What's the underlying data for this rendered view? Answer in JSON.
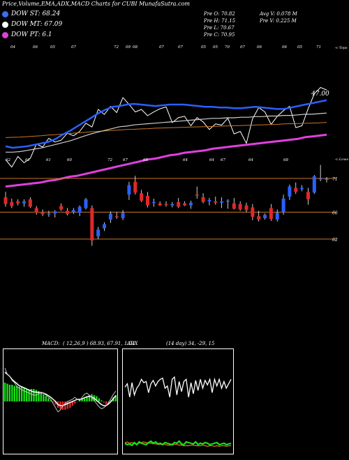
{
  "title": "Price,Volume,EMA,ADX,MACD Charts for CUBI MunafaSutra.com",
  "legend": [
    {
      "label": "DOW ST: 68.24",
      "color": "#3a6ff0"
    },
    {
      "label": "DOW MT: 67.09",
      "color": "#ffffff"
    },
    {
      "label": "DOW PT: 6.1",
      "color": "#e040e0"
    }
  ],
  "ohlc_col1": [
    "Pre  O: 70.82",
    "Pre  H: 71.15",
    "Pre  L: 70.67",
    "Pre  C: 70.95"
  ],
  "ohlc_col2": [
    "Avg V: 0.078  M",
    "Pre  V: 0.225  M"
  ],
  "upper_tag": "<-Tops",
  "lower_tag": "<-Lows",
  "value_label": "47.00",
  "top_tags": [
    "04",
    "06",
    "05",
    "07",
    "72",
    "09",
    "08",
    "07",
    "07",
    "05",
    "05",
    "70",
    "07",
    "06",
    "06",
    "05",
    "71"
  ],
  "bottom_tags": [
    "62",
    "61",
    "61",
    "60",
    "72",
    "67",
    "68",
    "64",
    "64",
    "67",
    "64",
    "68"
  ],
  "price_labels": [
    "71",
    "66",
    "62"
  ],
  "macd_label": "MACD:",
  "macd_params": "( 12,26,9 ) 68.93, 67.91, 1.04",
  "adx_label": "ADX",
  "adx_params": "(14 day) 34, -29, 15",
  "chart_data": {
    "type": "candlestick",
    "levels": [
      71,
      66,
      62
    ],
    "candles": [
      {
        "o": 68.2,
        "h": 69.0,
        "l": 66.8,
        "c": 67.2,
        "up": false
      },
      {
        "o": 67.5,
        "h": 68.0,
        "l": 66.6,
        "c": 66.9,
        "up": false
      },
      {
        "o": 67.6,
        "h": 67.9,
        "l": 67.0,
        "c": 67.3,
        "up": false
      },
      {
        "o": 67.3,
        "h": 67.9,
        "l": 66.8,
        "c": 67.6,
        "up": true
      },
      {
        "o": 67.9,
        "h": 68.2,
        "l": 66.6,
        "c": 66.8,
        "up": false
      },
      {
        "o": 66.6,
        "h": 66.9,
        "l": 65.6,
        "c": 65.9,
        "up": false
      },
      {
        "o": 66.0,
        "h": 66.4,
        "l": 65.4,
        "c": 65.7,
        "up": false
      },
      {
        "o": 65.8,
        "h": 66.2,
        "l": 65.3,
        "c": 65.8,
        "up": true
      },
      {
        "o": 65.8,
        "h": 66.3,
        "l": 65.2,
        "c": 66.1,
        "up": true
      },
      {
        "o": 66.9,
        "h": 67.3,
        "l": 66.2,
        "c": 66.4,
        "up": false
      },
      {
        "o": 66.2,
        "h": 66.6,
        "l": 65.5,
        "c": 65.7,
        "up": false
      },
      {
        "o": 66.0,
        "h": 66.6,
        "l": 65.7,
        "c": 66.3,
        "up": true
      },
      {
        "o": 65.9,
        "h": 67.0,
        "l": 65.4,
        "c": 66.8,
        "up": true
      },
      {
        "o": 66.6,
        "h": 68.1,
        "l": 66.4,
        "c": 67.9,
        "up": true
      },
      {
        "o": 66.6,
        "h": 67.0,
        "l": 61.0,
        "c": 61.8,
        "up": false
      },
      {
        "o": 62.4,
        "h": 63.8,
        "l": 62.0,
        "c": 63.4,
        "up": true
      },
      {
        "o": 63.6,
        "h": 64.5,
        "l": 63.2,
        "c": 64.2,
        "up": true
      },
      {
        "o": 64.9,
        "h": 66.1,
        "l": 64.4,
        "c": 65.8,
        "up": true
      },
      {
        "o": 65.4,
        "h": 66.0,
        "l": 65.0,
        "c": 65.4,
        "up": false
      },
      {
        "o": 65.1,
        "h": 66.3,
        "l": 64.8,
        "c": 65.9,
        "up": true
      },
      {
        "o": 68.6,
        "h": 70.5,
        "l": 67.8,
        "c": 70.0,
        "up": true
      },
      {
        "o": 70.5,
        "h": 71.4,
        "l": 68.6,
        "c": 68.9,
        "up": false
      },
      {
        "o": 68.8,
        "h": 69.3,
        "l": 67.5,
        "c": 67.7,
        "up": false
      },
      {
        "o": 68.4,
        "h": 69.0,
        "l": 66.7,
        "c": 67.0,
        "up": false
      },
      {
        "o": 67.4,
        "h": 68.0,
        "l": 66.8,
        "c": 67.5,
        "up": true
      },
      {
        "o": 67.3,
        "h": 67.6,
        "l": 66.9,
        "c": 67.0,
        "up": false
      },
      {
        "o": 67.2,
        "h": 67.6,
        "l": 66.8,
        "c": 67.1,
        "up": false
      },
      {
        "o": 67.0,
        "h": 67.5,
        "l": 66.7,
        "c": 67.2,
        "up": true
      },
      {
        "o": 67.5,
        "h": 68.1,
        "l": 66.6,
        "c": 66.8,
        "up": false
      },
      {
        "o": 67.3,
        "h": 67.6,
        "l": 66.9,
        "c": 67.0,
        "up": false
      },
      {
        "o": 67.0,
        "h": 67.7,
        "l": 66.5,
        "c": 67.4,
        "up": true
      },
      {
        "o": 68.6,
        "h": 69.8,
        "l": 68.0,
        "c": 68.5,
        "up": false
      },
      {
        "o": 68.2,
        "h": 68.8,
        "l": 67.3,
        "c": 67.5,
        "up": false
      },
      {
        "o": 67.6,
        "h": 68.1,
        "l": 67.0,
        "c": 67.8,
        "up": true
      },
      {
        "o": 67.6,
        "h": 68.3,
        "l": 67.1,
        "c": 67.4,
        "up": false
      },
      {
        "o": 67.4,
        "h": 68.2,
        "l": 66.6,
        "c": 67.6,
        "up": true
      },
      {
        "o": 67.6,
        "h": 67.9,
        "l": 66.5,
        "c": 67.7,
        "up": true
      },
      {
        "o": 67.3,
        "h": 68.1,
        "l": 66.4,
        "c": 66.5,
        "up": false
      },
      {
        "o": 67.2,
        "h": 67.6,
        "l": 66.2,
        "c": 66.4,
        "up": false
      },
      {
        "o": 67.0,
        "h": 67.4,
        "l": 66.0,
        "c": 66.3,
        "up": false
      },
      {
        "o": 66.7,
        "h": 67.2,
        "l": 64.8,
        "c": 65.3,
        "up": false
      },
      {
        "o": 65.4,
        "h": 66.2,
        "l": 64.6,
        "c": 64.9,
        "up": false
      },
      {
        "o": 65.1,
        "h": 65.8,
        "l": 64.9,
        "c": 65.6,
        "up": true
      },
      {
        "o": 66.6,
        "h": 67.2,
        "l": 64.7,
        "c": 65.0,
        "up": false
      },
      {
        "o": 64.9,
        "h": 66.4,
        "l": 64.6,
        "c": 65.9,
        "up": true
      },
      {
        "o": 66.0,
        "h": 68.6,
        "l": 65.6,
        "c": 68.0,
        "up": true
      },
      {
        "o": 68.3,
        "h": 70.1,
        "l": 67.8,
        "c": 69.8,
        "up": true
      },
      {
        "o": 69.6,
        "h": 70.4,
        "l": 68.7,
        "c": 69.0,
        "up": false
      },
      {
        "o": 69.4,
        "h": 70.0,
        "l": 69.1,
        "c": 69.6,
        "up": true
      },
      {
        "o": 69.0,
        "h": 69.6,
        "l": 67.1,
        "c": 67.9,
        "up": false
      },
      {
        "o": 68.9,
        "h": 71.5,
        "l": 68.7,
        "c": 71.3,
        "up": true
      },
      {
        "o": 71.0,
        "h": 73.0,
        "l": 70.6,
        "c": 71.0,
        "up": true
      },
      {
        "o": 70.8,
        "h": 71.2,
        "l": 70.4,
        "c": 70.95,
        "up": true
      }
    ],
    "ema": {
      "white_close": [
        66.0,
        64.8,
        66.5,
        65.5,
        66.2,
        68.5,
        68.0,
        69.4,
        68.8,
        69.1,
        70.2,
        69.8,
        70.5,
        71.8,
        71.2,
        74.0,
        73.2,
        74.5,
        73.5,
        75.9,
        74.8,
        73.6,
        74.0,
        73.0,
        73.6,
        74.1,
        74.4,
        71.9,
        72.7,
        72.9,
        71.4,
        72.7,
        72.0,
        70.8,
        71.7,
        71.5,
        72.6,
        70.1,
        70.5,
        68.6,
        72.5,
        74.3,
        73.6,
        71.6,
        72.9,
        73.8,
        74.5,
        71.1,
        71.4,
        74.1,
        76.5,
        77.5,
        77.1
      ],
      "blue": [
        67.2,
        67.0,
        67.1,
        67.2,
        67.4,
        67.6,
        67.8,
        68.2,
        68.8,
        69.3,
        69.9,
        70.5,
        71.1,
        71.7,
        72.2,
        72.6,
        72.7,
        72.9,
        73.0,
        72.9,
        72.8,
        72.7,
        72.8,
        72.9,
        72.9,
        72.9,
        72.8,
        72.7,
        72.6,
        72.6,
        72.5,
        72.5,
        72.4,
        72.4,
        72.5,
        72.6,
        72.5,
        72.4,
        72.3,
        72.3,
        72.5,
        72.7,
        72.9,
        73.1,
        73.3,
        73.5
      ],
      "white_mt": [
        66.2,
        66.2,
        66.3,
        66.5,
        66.7,
        66.9,
        67.2,
        67.5,
        67.8,
        68.1,
        68.5,
        68.9,
        69.3,
        69.6,
        69.9,
        70.2,
        70.5,
        70.6,
        70.8,
        70.9,
        71.0,
        71.1,
        71.2,
        71.3,
        71.4,
        71.5,
        71.6,
        71.7,
        71.8,
        71.9,
        71.9,
        72.0,
        72.0,
        72.1,
        72.1,
        72.2,
        72.2,
        72.3,
        72.3,
        72.4,
        72.4,
        72.5,
        72.6,
        72.6,
        72.7,
        72.8
      ],
      "orange": [
        64.2,
        64.3,
        64.4,
        64.6,
        64.8,
        65.0,
        65.3,
        65.5,
        65.8,
        66.0,
        66.3,
        66.5,
        66.8,
        67.0,
        67.2,
        67.4,
        67.6,
        67.8,
        67.9,
        68.1,
        68.2,
        68.4,
        68.5,
        68.6,
        68.7,
        68.8,
        68.9,
        69.0,
        69.1,
        69.2,
        69.3,
        69.4,
        69.5,
        69.6,
        69.7,
        69.8,
        69.9,
        70.0,
        70.1,
        70.3,
        70.4,
        70.5,
        70.6,
        70.7,
        70.8,
        71.0
      ],
      "magenta": [
        64.2,
        64.3,
        64.4,
        64.5,
        64.6,
        64.7,
        64.9,
        65.0,
        65.2,
        65.4,
        65.5,
        65.7,
        65.9,
        66.1,
        66.3,
        66.5,
        66.7,
        66.9,
        67.1,
        67.3,
        67.5,
        67.6,
        67.8,
        68.0,
        68.1,
        68.3,
        68.4,
        68.5,
        68.6,
        68.8,
        68.9,
        69.0,
        69.1,
        69.2,
        69.3,
        69.4,
        69.5,
        69.6,
        69.7,
        69.8,
        69.9,
        70.0,
        70.2,
        70.3,
        70.4,
        70.5
      ]
    },
    "macd": {
      "hist": [
        0.9,
        0.85,
        0.8,
        0.8,
        0.75,
        0.75,
        0.7,
        0.7,
        0.65,
        0.6,
        0.55,
        0.6,
        0.6,
        0.55,
        0.5,
        0.45,
        0.35,
        0.25,
        0.15,
        0.05,
        -0.05,
        -0.15,
        -0.3,
        -0.35,
        -0.4,
        -0.4,
        -0.35,
        -0.3,
        -0.2,
        -0.1,
        0.0,
        0.05,
        0.1,
        0.15,
        0.2,
        0.3,
        0.35,
        0.3,
        0.25,
        0.15,
        0.05,
        -0.05,
        -0.15,
        -0.1,
        0.05,
        0.2,
        0.3
      ],
      "macd_line": [
        1.6,
        1.3,
        1.2,
        1.0,
        0.9,
        0.7,
        0.65,
        0.55,
        0.5,
        0.45,
        0.4,
        0.35,
        0.3,
        0.3,
        0.35,
        0.45,
        0.4,
        0.3,
        0.2,
        0.1,
        -0.1,
        -0.3,
        -0.5,
        -0.4,
        -0.2,
        -0.1,
        0.0,
        0.05,
        0.1,
        0.2,
        0.1,
        0.05,
        0.2,
        0.35,
        0.4,
        0.3,
        0.2,
        0.05,
        -0.1,
        -0.25,
        -0.35,
        -0.3,
        -0.2,
        -0.05,
        0.15,
        0.35,
        0.5
      ],
      "signal": [
        1.4,
        1.3,
        1.2,
        1.05,
        0.95,
        0.85,
        0.75,
        0.7,
        0.65,
        0.6,
        0.55,
        0.5,
        0.45,
        0.45,
        0.42,
        0.42,
        0.4,
        0.35,
        0.28,
        0.2,
        0.1,
        0.0,
        -0.15,
        -0.2,
        -0.2,
        -0.15,
        -0.1,
        -0.05,
        0.0,
        0.05,
        0.1,
        0.1,
        0.12,
        0.18,
        0.22,
        0.25,
        0.22,
        0.15,
        0.05,
        -0.05,
        -0.15,
        -0.2,
        -0.2,
        -0.12,
        0.0,
        0.15,
        0.28
      ]
    },
    "adx": {
      "plus_di": [
        31,
        34,
        22,
        35,
        24,
        30,
        33,
        38,
        35,
        36,
        26,
        34,
        37,
        32,
        36,
        38,
        39,
        30,
        32,
        22,
        38,
        40,
        24,
        36,
        27,
        36,
        38,
        22,
        35,
        25,
        37,
        28,
        38,
        30,
        37,
        33,
        38,
        26,
        38,
        32,
        38,
        30,
        36,
        30,
        34,
        38
      ],
      "minus_di": [
        14,
        12,
        13,
        11,
        15,
        12,
        16,
        14,
        13,
        12,
        15,
        17,
        14,
        16,
        13,
        14,
        12,
        15,
        14,
        13,
        12,
        15,
        14,
        17,
        13,
        12,
        16,
        15,
        14,
        13,
        16,
        12,
        14,
        13,
        15,
        14,
        12,
        13,
        14,
        15,
        12,
        13,
        14,
        12,
        13,
        14
      ],
      "adx_line": [
        20,
        21,
        19,
        20,
        18,
        18,
        19,
        20,
        21,
        20,
        19,
        19,
        18,
        18,
        17,
        17,
        18,
        17,
        16,
        16,
        16,
        17,
        17,
        16,
        16,
        15,
        15,
        15,
        16,
        16,
        15,
        15,
        15,
        16,
        15,
        14,
        15,
        15,
        14,
        15,
        14,
        15,
        15,
        14,
        15,
        15
      ]
    }
  }
}
